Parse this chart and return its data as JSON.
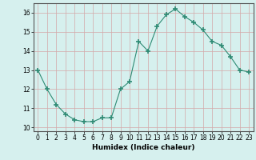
{
  "x": [
    0,
    1,
    2,
    3,
    4,
    5,
    6,
    7,
    8,
    9,
    10,
    11,
    12,
    13,
    14,
    15,
    16,
    17,
    18,
    19,
    20,
    21,
    22,
    23
  ],
  "y": [
    13.0,
    12.0,
    11.2,
    10.7,
    10.4,
    10.3,
    10.3,
    10.5,
    10.5,
    12.0,
    12.4,
    14.5,
    14.0,
    15.3,
    15.9,
    16.2,
    15.8,
    15.5,
    15.1,
    14.5,
    14.3,
    13.7,
    13.0,
    12.9
  ],
  "line_color": "#2e8b74",
  "marker": "+",
  "marker_color": "#2e8b74",
  "bg_color": "#d6f0ee",
  "grid_color": "#c8e0dc",
  "xlabel": "Humidex (Indice chaleur)",
  "xlim": [
    -0.5,
    23.5
  ],
  "ylim": [
    9.8,
    16.5
  ],
  "yticks": [
    10,
    11,
    12,
    13,
    14,
    15,
    16
  ],
  "xticks": [
    0,
    1,
    2,
    3,
    4,
    5,
    6,
    7,
    8,
    9,
    10,
    11,
    12,
    13,
    14,
    15,
    16,
    17,
    18,
    19,
    20,
    21,
    22,
    23
  ],
  "tick_fontsize": 5.5,
  "xlabel_fontsize": 6.5
}
